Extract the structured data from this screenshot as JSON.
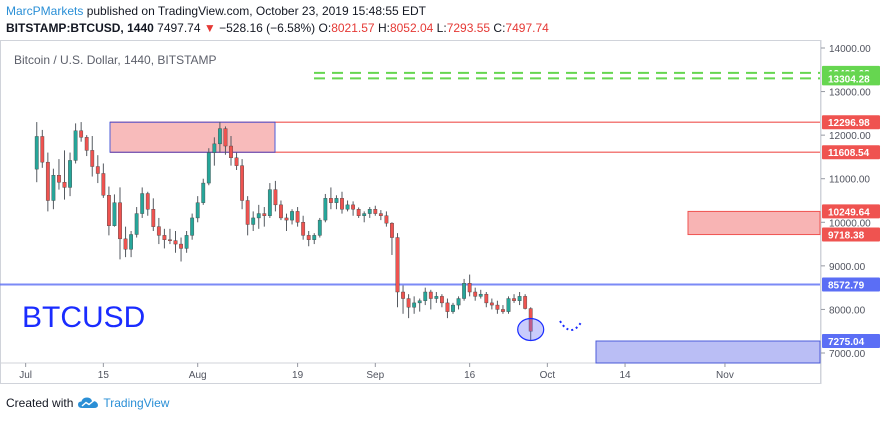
{
  "header": {
    "author": "MarcPMarkets",
    "published_text": "published on TradingView.com, October 23, 2019 15:48:55 EDT",
    "symbol": "BITSTAMP:BTCUSD, 1440",
    "last": "7497.74",
    "change": "−528.16 (−6.58%)",
    "o_label": "O:",
    "o_value": "8021.57",
    "h_label": "H:",
    "h_value": "8052.04",
    "l_label": "L:",
    "l_value": "7293.55",
    "c_label": "C:",
    "c_value": "7497.74"
  },
  "footer": {
    "created_with": "Created with",
    "brand": "TradingView",
    "logo_icon": "tradingview-cloud-icon"
  },
  "colors": {
    "up": "#26a69a",
    "down": "#ef5350",
    "resistance_line": "#ef5350",
    "resistance_zone": "#f8b4b4",
    "support_line": "#5b6ef5",
    "support_zone": "#b3b8f5",
    "target_line": "#66d650",
    "annotation": "#1a2cff"
  },
  "chart_data": {
    "type": "candlestick",
    "title": "Bitcoin / U.S. Dollar, 1440, BITSTAMP",
    "watermark": "BTCUSD",
    "ylim": [
      6700,
      14200
    ],
    "y_ticks": [
      7000,
      8000,
      9000,
      10000,
      11000,
      12000,
      13000,
      14000
    ],
    "y_tick_labels": [
      "7000.00",
      "8000.00",
      "9000.00",
      "10000.00",
      "11000.00",
      "12000.00",
      "13000.00",
      "14000.00"
    ],
    "x_tick_labels": [
      "Jul",
      "15",
      "Aug",
      "19",
      "Sep",
      "16",
      "Oct",
      "14",
      "Nov"
    ],
    "x_tick_bars": [
      3,
      17,
      34,
      52,
      66,
      83,
      97,
      111,
      129
    ],
    "price_labels": [
      {
        "value": 13429.08,
        "text": "13429.08",
        "color": "#66d650"
      },
      {
        "value": 13304.28,
        "text": "13304.28",
        "color": "#66d650"
      },
      {
        "value": 12296.98,
        "text": "12296.98",
        "color": "#ef5350"
      },
      {
        "value": 11608.54,
        "text": "11608.54",
        "color": "#ef5350"
      },
      {
        "value": 10249.64,
        "text": "10249.64",
        "color": "#ef5350"
      },
      {
        "value": 9718.38,
        "text": "9718.38",
        "color": "#ef5350"
      },
      {
        "value": 8572.79,
        "text": "8572.79",
        "color": "#5b6ef5"
      },
      {
        "value": 7275.04,
        "text": "7275.04",
        "color": "#5b6ef5"
      }
    ],
    "levels": {
      "target_upper": 13429.08,
      "target_lower": 13304.28,
      "resistance_upper": 12296.98,
      "resistance_lower": 11608.54,
      "zone2_upper": 10249.64,
      "zone2_lower": 9718.38,
      "support": 8572.79,
      "support_zone_upper": 7275.04
    },
    "candles": [
      [
        11220,
        12300,
        10920,
        11970
      ],
      [
        11970,
        12120,
        11250,
        11380
      ],
      [
        11380,
        11600,
        10250,
        10500
      ],
      [
        10500,
        11230,
        10300,
        11080
      ],
      [
        11080,
        11450,
        10750,
        10920
      ],
      [
        10920,
        11650,
        10520,
        10800
      ],
      [
        10800,
        11600,
        10600,
        11420
      ],
      [
        11420,
        12270,
        11350,
        12100
      ],
      [
        12100,
        12300,
        11850,
        11950
      ],
      [
        11950,
        12000,
        11520,
        11650
      ],
      [
        11650,
        11980,
        11050,
        11280
      ],
      [
        11280,
        11540,
        10900,
        11120
      ],
      [
        11120,
        11350,
        10560,
        10620
      ],
      [
        10620,
        10820,
        9700,
        9920
      ],
      [
        9920,
        10640,
        9900,
        10450
      ],
      [
        10450,
        10800,
        9150,
        9620
      ],
      [
        9620,
        9900,
        9200,
        9380
      ],
      [
        9380,
        9800,
        9200,
        9720
      ],
      [
        9720,
        10350,
        9650,
        10200
      ],
      [
        10200,
        10800,
        10100,
        10660
      ],
      [
        10660,
        10700,
        10150,
        10300
      ],
      [
        10300,
        10550,
        9800,
        9900
      ],
      [
        9900,
        10100,
        9500,
        9700
      ],
      [
        9700,
        9850,
        9400,
        9600
      ],
      [
        9600,
        9850,
        9500,
        9580
      ],
      [
        9580,
        9800,
        9300,
        9500
      ],
      [
        9500,
        9650,
        9100,
        9400
      ],
      [
        9400,
        9800,
        9300,
        9700
      ],
      [
        9700,
        10200,
        9600,
        10100
      ],
      [
        10100,
        10600,
        10000,
        10450
      ],
      [
        10450,
        11000,
        10400,
        10900
      ],
      [
        10900,
        11700,
        10850,
        11600
      ],
      [
        11600,
        11950,
        11300,
        11800
      ],
      [
        11800,
        12300,
        11600,
        12150
      ],
      [
        12150,
        12200,
        11550,
        11750
      ],
      [
        11750,
        11980,
        11300,
        11480
      ],
      [
        11480,
        11600,
        11200,
        11300
      ],
      [
        11300,
        11450,
        10300,
        10500
      ],
      [
        10500,
        10600,
        9700,
        9950
      ],
      [
        9950,
        10250,
        9800,
        10100
      ],
      [
        10100,
        10400,
        9850,
        10200
      ],
      [
        10200,
        10350,
        9900,
        10150
      ],
      [
        10150,
        10900,
        10100,
        10750
      ],
      [
        10750,
        10950,
        10250,
        10400
      ],
      [
        10400,
        10500,
        10050,
        10100
      ],
      [
        10100,
        10200,
        9800,
        10050
      ],
      [
        10050,
        10300,
        9950,
        10250
      ],
      [
        10250,
        10350,
        9900,
        10000
      ],
      [
        10000,
        10150,
        9600,
        9700
      ],
      [
        9700,
        9800,
        9450,
        9600
      ],
      [
        9600,
        9750,
        9500,
        9700
      ],
      [
        9700,
        10100,
        9650,
        10050
      ],
      [
        10050,
        10650,
        10000,
        10550
      ],
      [
        10550,
        10800,
        10300,
        10450
      ],
      [
        10450,
        10620,
        10300,
        10550
      ],
      [
        10550,
        10700,
        10200,
        10300
      ],
      [
        10300,
        10500,
        10250,
        10400
      ],
      [
        10400,
        10480,
        10150,
        10300
      ],
      [
        10300,
        10340,
        10100,
        10150
      ],
      [
        10150,
        10250,
        10000,
        10200
      ],
      [
        10200,
        10350,
        10100,
        10300
      ],
      [
        10300,
        10380,
        10150,
        10200
      ],
      [
        10200,
        10280,
        10050,
        10150
      ],
      [
        10150,
        10250,
        9900,
        9980
      ],
      [
        9980,
        10000,
        9250,
        9650
      ],
      [
        9650,
        9750,
        8050,
        8400
      ],
      [
        8400,
        8550,
        7900,
        8250
      ],
      [
        8250,
        8350,
        7800,
        8050
      ],
      [
        8050,
        8300,
        7900,
        8150
      ],
      [
        8150,
        8250,
        7950,
        8200
      ],
      [
        8200,
        8500,
        8100,
        8400
      ],
      [
        8400,
        8450,
        8000,
        8250
      ],
      [
        8250,
        8400,
        8150,
        8300
      ],
      [
        8300,
        8350,
        8050,
        8150
      ],
      [
        8150,
        8250,
        7800,
        7950
      ],
      [
        7950,
        8150,
        7900,
        8100
      ],
      [
        8100,
        8300,
        8000,
        8250
      ],
      [
        8250,
        8700,
        8200,
        8600
      ],
      [
        8600,
        8800,
        8300,
        8400
      ],
      [
        8400,
        8500,
        8200,
        8300
      ],
      [
        8300,
        8450,
        8250,
        8350
      ],
      [
        8350,
        8400,
        8050,
        8150
      ],
      [
        8150,
        8250,
        8000,
        8100
      ],
      [
        8100,
        8200,
        7900,
        8000
      ],
      [
        8000,
        8100,
        7900,
        7950
      ],
      [
        7950,
        8300,
        7900,
        8250
      ],
      [
        8250,
        8350,
        8150,
        8200
      ],
      [
        8200,
        8400,
        8100,
        8300
      ],
      [
        8300,
        8350,
        8000,
        8020
      ],
      [
        8020,
        8050,
        7290,
        7500
      ]
    ],
    "candle_start_index": 5
  }
}
